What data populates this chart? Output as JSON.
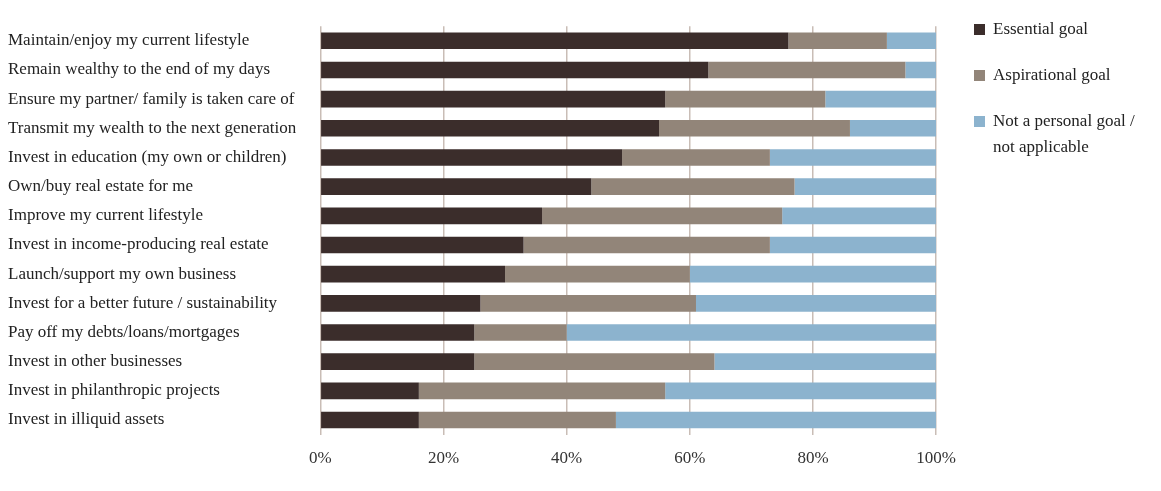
{
  "chart_data": {
    "type": "bar",
    "orientation": "horizontal",
    "stacked": true,
    "categories": [
      "Maintain/enjoy my current lifestyle",
      "Remain wealthy to the end of my days",
      "Ensure my partner/ family is taken care of",
      "Transmit my wealth to the next generation",
      "Invest in education (my own or children)",
      "Own/buy real estate for me",
      "Improve my current lifestyle",
      "Invest in income-producing real estate",
      "Launch/support my own business",
      "Invest for a better future / sustainability",
      "Pay off my debts/loans/mortgages",
      "Invest in other businesses",
      "Invest in philanthropic projects",
      "Invest in illiquid assets"
    ],
    "series": [
      {
        "name": "Essential goal",
        "color": "#3b2d2b",
        "values": [
          76,
          63,
          56,
          55,
          49,
          44,
          36,
          33,
          30,
          26,
          25,
          25,
          16,
          16
        ]
      },
      {
        "name": "Aspirational goal",
        "color": "#928579",
        "values": [
          16,
          32,
          26,
          31,
          24,
          33,
          39,
          40,
          30,
          35,
          15,
          39,
          40,
          32
        ]
      },
      {
        "name": "Not a personal goal / not applicable",
        "color": "#8cb3ce",
        "values": [
          8,
          5,
          18,
          14,
          27,
          23,
          25,
          27,
          40,
          39,
          60,
          36,
          44,
          52
        ]
      }
    ],
    "xlim": [
      0,
      100
    ],
    "xticks": [
      {
        "value": 0,
        "label": "0%"
      },
      {
        "value": 20,
        "label": "20%"
      },
      {
        "value": 40,
        "label": "40%"
      },
      {
        "value": 60,
        "label": "60%"
      },
      {
        "value": 80,
        "label": "80%"
      },
      {
        "value": 100,
        "label": "100%"
      }
    ],
    "grid": "x",
    "legend": "top right"
  }
}
